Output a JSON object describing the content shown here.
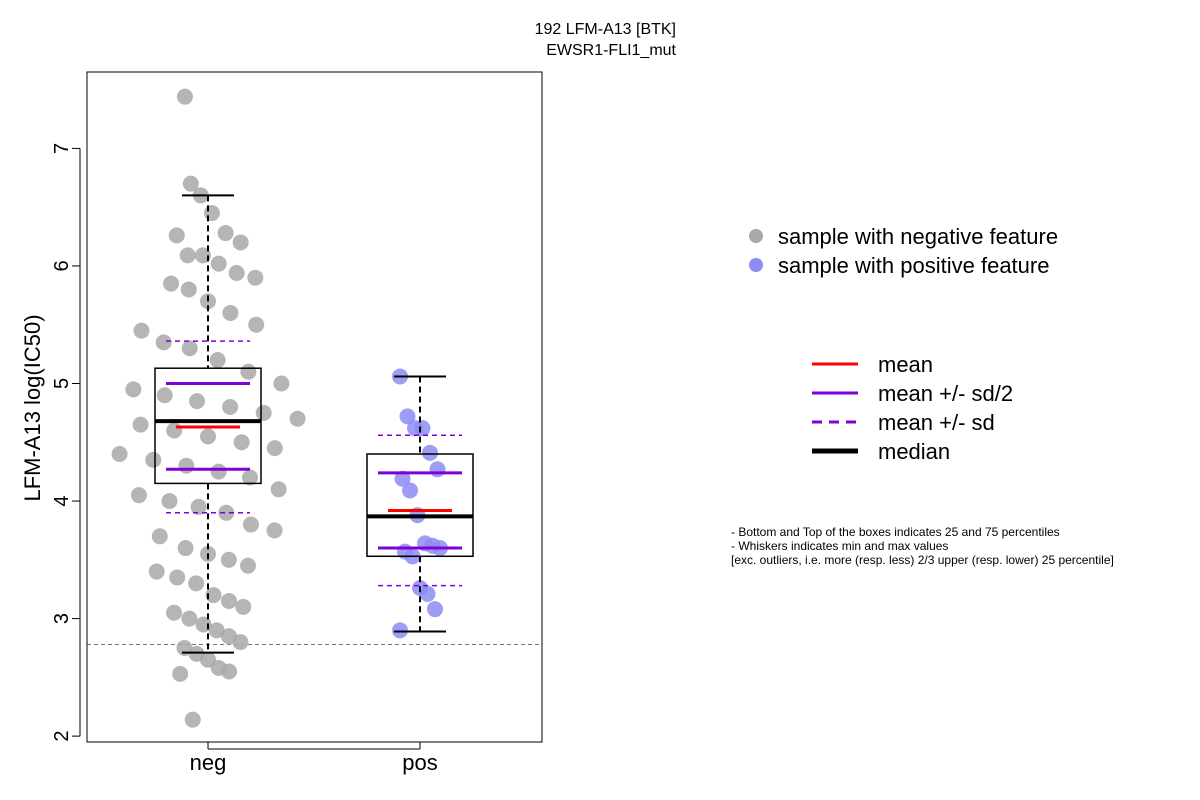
{
  "chart_data": {
    "type": "box",
    "title": "192 LFM-A13 [BTK]",
    "subtitle": "EWSR1-FLI1_mut",
    "xlabel": "",
    "ylabel": "LFM-A13 log(IC50)",
    "categories": [
      "neg",
      "pos"
    ],
    "ylim": [
      1.95,
      7.65
    ],
    "yticks": [
      2,
      3,
      4,
      5,
      6,
      7
    ],
    "reference_line_y": 2.78,
    "colors": {
      "neg_points": "#a8a8a8",
      "pos_points": "#8c8cf5",
      "mean": "#ff0000",
      "sd": "#8000d8",
      "median": "#000000",
      "reference_line": "#777777"
    },
    "groups": [
      {
        "name": "neg",
        "q1": 4.15,
        "median": 4.68,
        "q3": 5.13,
        "whisker_low": 2.71,
        "whisker_high": 6.6,
        "mean": 4.63,
        "mean_minus_half_sd": 4.27,
        "mean_plus_half_sd": 5.0,
        "mean_minus_sd": 3.9,
        "mean_plus_sd": 5.36,
        "points": [
          7.44,
          6.7,
          6.6,
          6.45,
          6.28,
          6.2,
          6.26,
          6.09,
          6.09,
          6.02,
          5.94,
          5.9,
          5.85,
          5.8,
          5.7,
          5.6,
          5.5,
          5.45,
          5.35,
          5.3,
          5.2,
          5.1,
          5.0,
          4.95,
          4.9,
          4.85,
          4.8,
          4.75,
          4.7,
          4.65,
          4.6,
          4.55,
          4.5,
          4.45,
          4.4,
          4.35,
          4.3,
          4.25,
          4.2,
          4.1,
          4.05,
          4.0,
          3.95,
          3.9,
          3.8,
          3.75,
          3.7,
          3.6,
          3.55,
          3.5,
          3.45,
          3.4,
          3.35,
          3.3,
          3.2,
          3.15,
          3.1,
          3.05,
          3.0,
          2.95,
          2.9,
          2.85,
          2.8,
          2.75,
          2.7,
          2.65,
          2.58,
          2.55,
          2.53,
          2.14
        ]
      },
      {
        "name": "pos",
        "q1": 3.53,
        "median": 3.87,
        "q3": 4.4,
        "whisker_low": 2.89,
        "whisker_high": 5.06,
        "mean": 3.92,
        "mean_minus_half_sd": 3.6,
        "mean_plus_half_sd": 4.24,
        "mean_minus_sd": 3.28,
        "mean_plus_sd": 4.56,
        "points": [
          5.06,
          4.72,
          4.62,
          4.62,
          4.41,
          4.27,
          4.19,
          4.09,
          3.88,
          3.64,
          3.62,
          3.6,
          3.57,
          3.53,
          3.26,
          3.21,
          3.08,
          2.9
        ]
      }
    ],
    "legend": {
      "points": [
        {
          "label": "sample with negative feature",
          "color": "#a8a8a8"
        },
        {
          "label": "sample with positive feature",
          "color": "#8c8cf5"
        }
      ],
      "lines": [
        {
          "label": "mean",
          "color": "#ff0000",
          "style": "solid"
        },
        {
          "label": "mean +/- sd/2",
          "color": "#8000d8",
          "style": "solid"
        },
        {
          "label": "mean +/- sd",
          "color": "#8000d8",
          "style": "dashed"
        },
        {
          "label": "median",
          "color": "#000000",
          "style": "thick"
        }
      ]
    },
    "notes": [
      "- Bottom and Top of the boxes indicates 25 and 75 percentiles",
      "- Whiskers indicates min and max values",
      "[exc. outliers, i.e. more (resp. less) 2/3 upper (resp. lower) 25 percentile]"
    ]
  }
}
